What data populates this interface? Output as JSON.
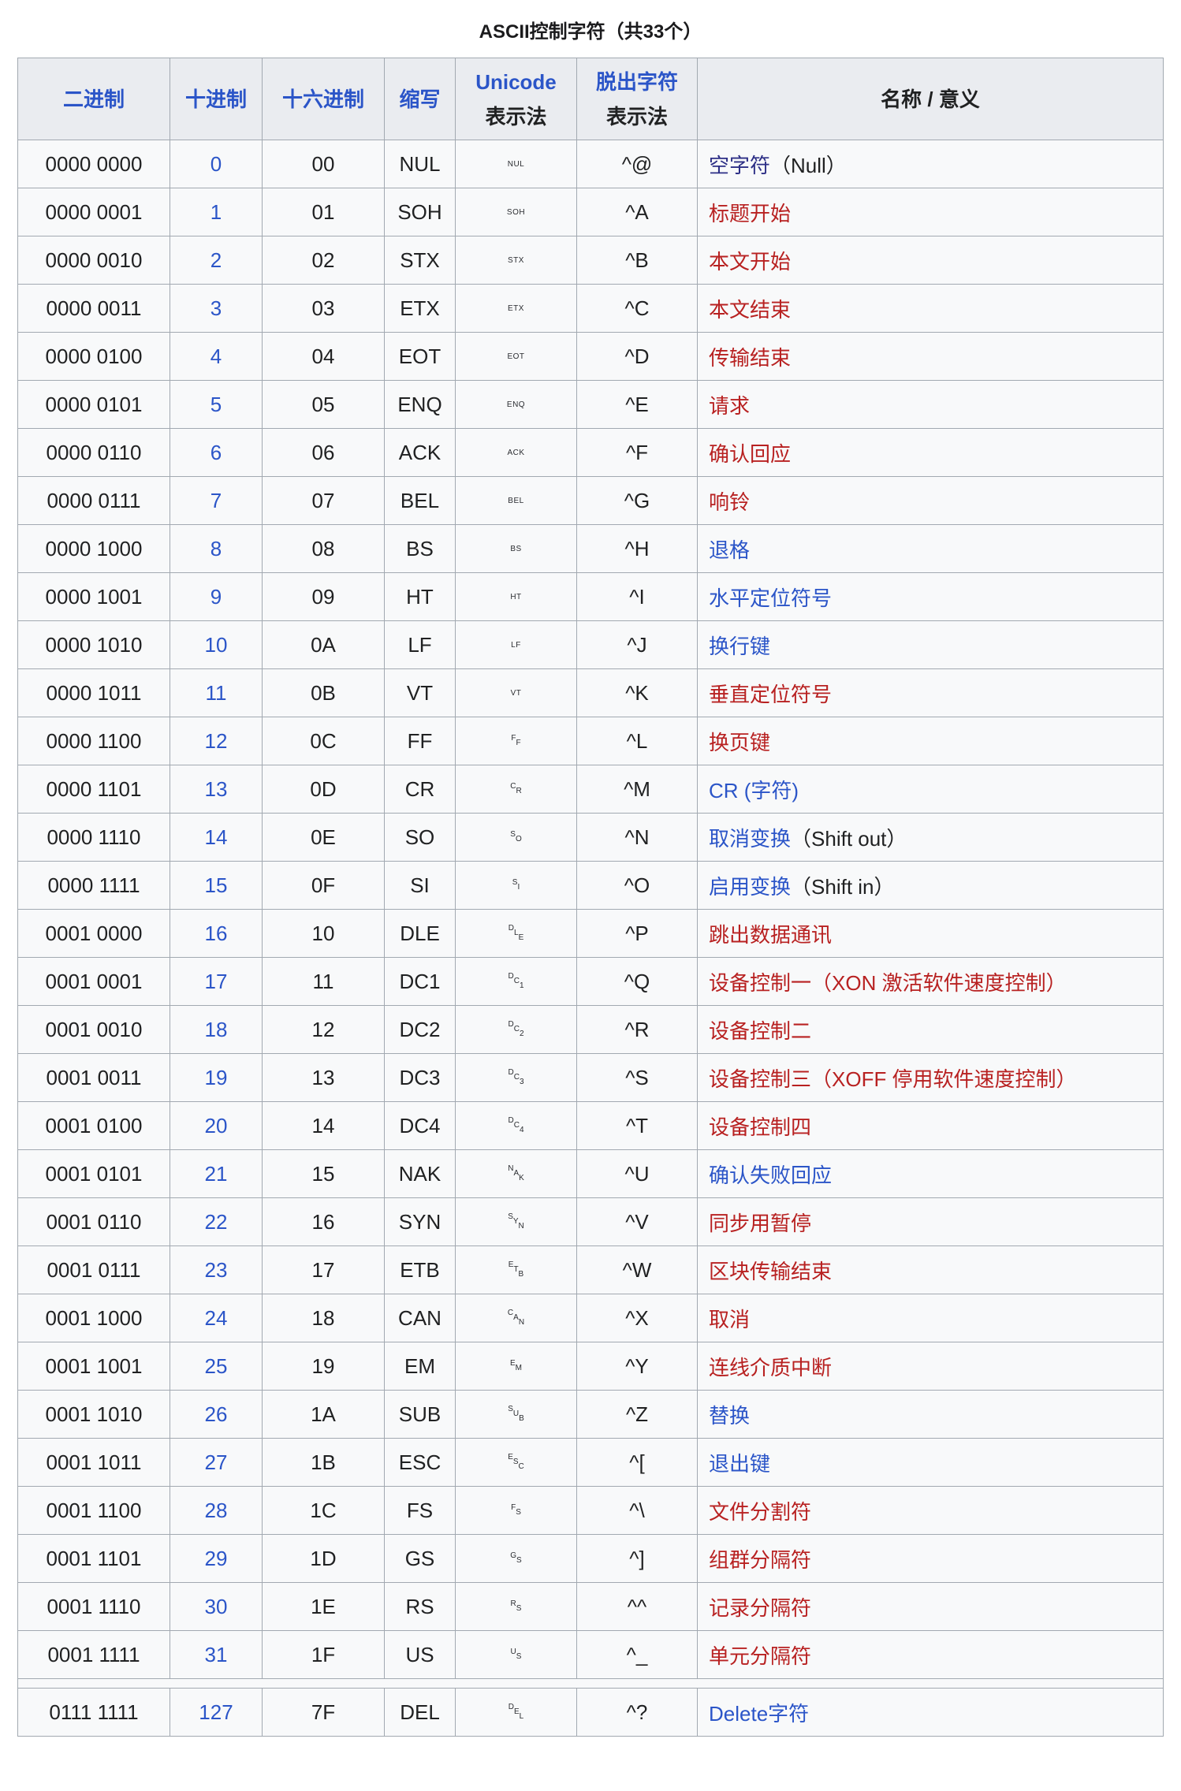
{
  "title": "ASCII控制字符（共33个）",
  "colors": {
    "blue": "#2b55c8",
    "red": "#b82121",
    "visited": "#2d2f86",
    "plain": "#202122"
  },
  "table": {
    "headers": [
      {
        "id": "binary",
        "lines": [
          "二进制"
        ],
        "link_lines": [
          true
        ]
      },
      {
        "id": "decimal",
        "lines": [
          "十进制"
        ],
        "link_lines": [
          true
        ]
      },
      {
        "id": "hex",
        "lines": [
          "十六进制"
        ],
        "link_lines": [
          true
        ]
      },
      {
        "id": "abbr",
        "lines": [
          "缩写"
        ],
        "link_lines": [
          true
        ]
      },
      {
        "id": "unicode",
        "lines": [
          "Unicode",
          "表示法"
        ],
        "link_lines": [
          true,
          false
        ]
      },
      {
        "id": "escape",
        "lines": [
          "脱出字符",
          "表示法"
        ],
        "link_lines": [
          true,
          false
        ]
      },
      {
        "id": "name",
        "lines": [
          "名称 / 意义"
        ],
        "link_lines": [
          false
        ]
      }
    ],
    "rows": [
      {
        "bin": "0000 0000",
        "dec": "0",
        "hex": "00",
        "abbr": "NUL",
        "glyph": "NUL",
        "diag": false,
        "esc": "^@",
        "name": [
          [
            "空字符",
            "visited"
          ],
          [
            "（Null）",
            "plain"
          ]
        ]
      },
      {
        "bin": "0000 0001",
        "dec": "1",
        "hex": "01",
        "abbr": "SOH",
        "glyph": "SOH",
        "diag": false,
        "esc": "^A",
        "name": [
          [
            "标题开始",
            "red"
          ]
        ]
      },
      {
        "bin": "0000 0010",
        "dec": "2",
        "hex": "02",
        "abbr": "STX",
        "glyph": "STX",
        "diag": false,
        "esc": "^B",
        "name": [
          [
            "本文开始",
            "red"
          ]
        ]
      },
      {
        "bin": "0000 0011",
        "dec": "3",
        "hex": "03",
        "abbr": "ETX",
        "glyph": "ETX",
        "diag": false,
        "esc": "^C",
        "name": [
          [
            "本文结束",
            "red"
          ]
        ]
      },
      {
        "bin": "0000 0100",
        "dec": "4",
        "hex": "04",
        "abbr": "EOT",
        "glyph": "EOT",
        "diag": false,
        "esc": "^D",
        "name": [
          [
            "传输结束",
            "red"
          ]
        ]
      },
      {
        "bin": "0000 0101",
        "dec": "5",
        "hex": "05",
        "abbr": "ENQ",
        "glyph": "ENQ",
        "diag": false,
        "esc": "^E",
        "name": [
          [
            "请求",
            "red"
          ]
        ]
      },
      {
        "bin": "0000 0110",
        "dec": "6",
        "hex": "06",
        "abbr": "ACK",
        "glyph": "ACK",
        "diag": false,
        "esc": "^F",
        "name": [
          [
            "确认回应",
            "red"
          ]
        ]
      },
      {
        "bin": "0000 0111",
        "dec": "7",
        "hex": "07",
        "abbr": "BEL",
        "glyph": "BEL",
        "diag": false,
        "esc": "^G",
        "name": [
          [
            "响铃",
            "red"
          ]
        ]
      },
      {
        "bin": "0000 1000",
        "dec": "8",
        "hex": "08",
        "abbr": "BS",
        "glyph": "BS",
        "diag": false,
        "esc": "^H",
        "name": [
          [
            "退格",
            "blue"
          ]
        ]
      },
      {
        "bin": "0000 1001",
        "dec": "9",
        "hex": "09",
        "abbr": "HT",
        "glyph": "HT",
        "diag": false,
        "esc": "^I",
        "name": [
          [
            "水平定位符号",
            "blue"
          ]
        ]
      },
      {
        "bin": "0000 1010",
        "dec": "10",
        "hex": "0A",
        "abbr": "LF",
        "glyph": "LF",
        "diag": false,
        "esc": "^J",
        "name": [
          [
            "换行键",
            "blue"
          ]
        ]
      },
      {
        "bin": "0000 1011",
        "dec": "11",
        "hex": "0B",
        "abbr": "VT",
        "glyph": "VT",
        "diag": false,
        "esc": "^K",
        "name": [
          [
            "垂直定位符号",
            "red"
          ]
        ]
      },
      {
        "bin": "0000 1100",
        "dec": "12",
        "hex": "0C",
        "abbr": "FF",
        "glyph": "FF",
        "diag": true,
        "esc": "^L",
        "name": [
          [
            "换页键",
            "red"
          ]
        ]
      },
      {
        "bin": "0000 1101",
        "dec": "13",
        "hex": "0D",
        "abbr": "CR",
        "glyph": "CR",
        "diag": true,
        "esc": "^M",
        "name": [
          [
            "CR (字符)",
            "blue"
          ]
        ]
      },
      {
        "bin": "0000 1110",
        "dec": "14",
        "hex": "0E",
        "abbr": "SO",
        "glyph": "SO",
        "diag": true,
        "esc": "^N",
        "name": [
          [
            "取消变换",
            "blue"
          ],
          [
            "（Shift out）",
            "plain"
          ]
        ]
      },
      {
        "bin": "0000 1111",
        "dec": "15",
        "hex": "0F",
        "abbr": "SI",
        "glyph": "SI",
        "diag": true,
        "esc": "^O",
        "name": [
          [
            "启用变换",
            "blue"
          ],
          [
            "（Shift in）",
            "plain"
          ]
        ]
      },
      {
        "bin": "0001 0000",
        "dec": "16",
        "hex": "10",
        "abbr": "DLE",
        "glyph": "DLE",
        "diag": true,
        "esc": "^P",
        "name": [
          [
            "跳出数据通讯",
            "red"
          ]
        ]
      },
      {
        "bin": "0001 0001",
        "dec": "17",
        "hex": "11",
        "abbr": "DC1",
        "glyph": "DC1",
        "diag": true,
        "esc": "^Q",
        "name": [
          [
            "设备控制一（XON 激活软件速度控制）",
            "red"
          ]
        ]
      },
      {
        "bin": "0001 0010",
        "dec": "18",
        "hex": "12",
        "abbr": "DC2",
        "glyph": "DC2",
        "diag": true,
        "esc": "^R",
        "name": [
          [
            "设备控制二",
            "red"
          ]
        ]
      },
      {
        "bin": "0001 0011",
        "dec": "19",
        "hex": "13",
        "abbr": "DC3",
        "glyph": "DC3",
        "diag": true,
        "esc": "^S",
        "name": [
          [
            "设备控制三（XOFF 停用软件速度控制）",
            "red"
          ]
        ]
      },
      {
        "bin": "0001 0100",
        "dec": "20",
        "hex": "14",
        "abbr": "DC4",
        "glyph": "DC4",
        "diag": true,
        "esc": "^T",
        "name": [
          [
            "设备控制四",
            "red"
          ]
        ]
      },
      {
        "bin": "0001 0101",
        "dec": "21",
        "hex": "15",
        "abbr": "NAK",
        "glyph": "NAK",
        "diag": true,
        "esc": "^U",
        "name": [
          [
            "确认失败回应",
            "blue"
          ]
        ]
      },
      {
        "bin": "0001 0110",
        "dec": "22",
        "hex": "16",
        "abbr": "SYN",
        "glyph": "SYN",
        "diag": true,
        "esc": "^V",
        "name": [
          [
            "同步用暂停",
            "red"
          ]
        ]
      },
      {
        "bin": "0001 0111",
        "dec": "23",
        "hex": "17",
        "abbr": "ETB",
        "glyph": "ETB",
        "diag": true,
        "esc": "^W",
        "name": [
          [
            "区块传输结束",
            "red"
          ]
        ]
      },
      {
        "bin": "0001 1000",
        "dec": "24",
        "hex": "18",
        "abbr": "CAN",
        "glyph": "CAN",
        "diag": true,
        "esc": "^X",
        "name": [
          [
            "取消",
            "red"
          ]
        ]
      },
      {
        "bin": "0001 1001",
        "dec": "25",
        "hex": "19",
        "abbr": "EM",
        "glyph": "EM",
        "diag": true,
        "esc": "^Y",
        "name": [
          [
            "连线介质中断",
            "red"
          ]
        ]
      },
      {
        "bin": "0001 1010",
        "dec": "26",
        "hex": "1A",
        "abbr": "SUB",
        "glyph": "SUB",
        "diag": true,
        "esc": "^Z",
        "name": [
          [
            "替换",
            "blue"
          ]
        ]
      },
      {
        "bin": "0001 1011",
        "dec": "27",
        "hex": "1B",
        "abbr": "ESC",
        "glyph": "ESC",
        "diag": true,
        "esc": "^[",
        "name": [
          [
            "退出键",
            "blue"
          ]
        ]
      },
      {
        "bin": "0001 1100",
        "dec": "28",
        "hex": "1C",
        "abbr": "FS",
        "glyph": "FS",
        "diag": true,
        "esc": "^\\",
        "name": [
          [
            "文件分割符",
            "red"
          ]
        ]
      },
      {
        "bin": "0001 1101",
        "dec": "29",
        "hex": "1D",
        "abbr": "GS",
        "glyph": "GS",
        "diag": true,
        "esc": "^]",
        "name": [
          [
            "组群分隔符",
            "red"
          ]
        ]
      },
      {
        "bin": "0001 1110",
        "dec": "30",
        "hex": "1E",
        "abbr": "RS",
        "glyph": "RS",
        "diag": true,
        "esc": "^^",
        "name": [
          [
            "记录分隔符",
            "red"
          ]
        ]
      },
      {
        "bin": "0001 1111",
        "dec": "31",
        "hex": "1F",
        "abbr": "US",
        "glyph": "US",
        "diag": true,
        "esc": "^_",
        "name": [
          [
            "单元分隔符",
            "red"
          ]
        ]
      },
      {
        "sep": true
      },
      {
        "bin": "0111 1111",
        "dec": "127",
        "hex": "7F",
        "abbr": "DEL",
        "glyph": "DEL",
        "diag": true,
        "esc": "^?",
        "name": [
          [
            "Delete字符",
            "blue"
          ]
        ]
      }
    ]
  }
}
